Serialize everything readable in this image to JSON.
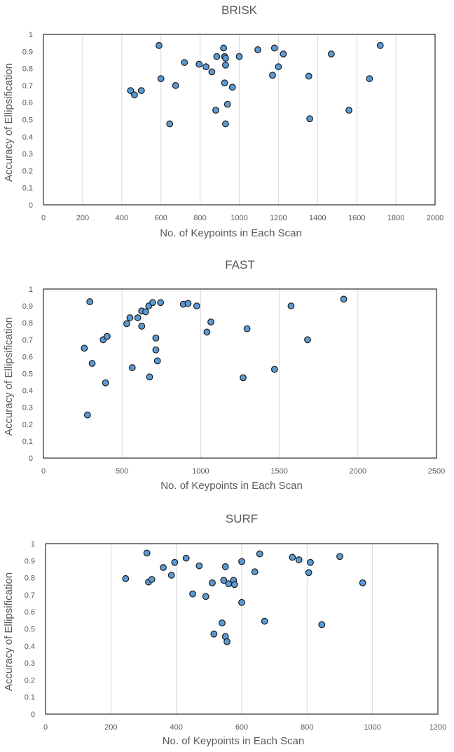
{
  "chart_data": [
    {
      "type": "scatter",
      "title": "BRISK",
      "xlabel": "No. of Keypoints in Each Scan",
      "ylabel": "Accuracy of Ellipsification",
      "xlim": [
        0,
        2000
      ],
      "ylim": [
        0,
        1
      ],
      "xticks": [
        0,
        200,
        400,
        600,
        800,
        1000,
        1200,
        1400,
        1600,
        1800,
        2000
      ],
      "yticks": [
        0,
        0.1,
        0.2,
        0.3,
        0.4,
        0.5,
        0.6,
        0.7,
        0.8,
        0.9,
        1
      ],
      "grid": "vertical",
      "marker_color": "#5b9bd5",
      "points": [
        [
          445,
          0.67
        ],
        [
          465,
          0.645
        ],
        [
          500,
          0.67
        ],
        [
          590,
          0.935
        ],
        [
          600,
          0.74
        ],
        [
          645,
          0.475
        ],
        [
          675,
          0.7
        ],
        [
          720,
          0.835
        ],
        [
          795,
          0.825
        ],
        [
          830,
          0.81
        ],
        [
          860,
          0.78
        ],
        [
          885,
          0.87
        ],
        [
          880,
          0.555
        ],
        [
          920,
          0.92
        ],
        [
          925,
          0.87
        ],
        [
          930,
          0.86
        ],
        [
          930,
          0.82
        ],
        [
          925,
          0.715
        ],
        [
          940,
          0.59
        ],
        [
          930,
          0.475
        ],
        [
          965,
          0.69
        ],
        [
          1000,
          0.87
        ],
        [
          1095,
          0.91
        ],
        [
          1170,
          0.76
        ],
        [
          1180,
          0.92
        ],
        [
          1200,
          0.81
        ],
        [
          1225,
          0.885
        ],
        [
          1355,
          0.755
        ],
        [
          1360,
          0.505
        ],
        [
          1470,
          0.885
        ],
        [
          1560,
          0.555
        ],
        [
          1665,
          0.74
        ],
        [
          1720,
          0.935
        ]
      ]
    },
    {
      "type": "scatter",
      "title": "FAST",
      "xlabel": "No. of Keypoints in Each Scan",
      "ylabel": "Accuracy of Ellipsification",
      "xlim": [
        0,
        2500
      ],
      "ylim": [
        0,
        1
      ],
      "xticks": [
        0,
        500,
        1000,
        1500,
        2000,
        2500
      ],
      "yticks": [
        0,
        0.1,
        0.2,
        0.3,
        0.4,
        0.5,
        0.6,
        0.7,
        0.8,
        0.9,
        1
      ],
      "grid": "vertical",
      "marker_color": "#5b9bd5",
      "points": [
        [
          260,
          0.65
        ],
        [
          280,
          0.255
        ],
        [
          295,
          0.925
        ],
        [
          310,
          0.56
        ],
        [
          380,
          0.7
        ],
        [
          395,
          0.445
        ],
        [
          405,
          0.72
        ],
        [
          530,
          0.795
        ],
        [
          550,
          0.83
        ],
        [
          565,
          0.535
        ],
        [
          600,
          0.83
        ],
        [
          625,
          0.78
        ],
        [
          625,
          0.87
        ],
        [
          650,
          0.865
        ],
        [
          670,
          0.9
        ],
        [
          675,
          0.48
        ],
        [
          695,
          0.92
        ],
        [
          715,
          0.71
        ],
        [
          715,
          0.64
        ],
        [
          725,
          0.575
        ],
        [
          745,
          0.92
        ],
        [
          890,
          0.91
        ],
        [
          920,
          0.915
        ],
        [
          975,
          0.9
        ],
        [
          1040,
          0.745
        ],
        [
          1065,
          0.805
        ],
        [
          1270,
          0.475
        ],
        [
          1295,
          0.765
        ],
        [
          1470,
          0.525
        ],
        [
          1575,
          0.9
        ],
        [
          1680,
          0.7
        ],
        [
          1910,
          0.94
        ]
      ]
    },
    {
      "type": "scatter",
      "title": "SURF",
      "xlabel": "No. of Keypoints in Each Scan",
      "ylabel": "Accuracy of Ellipsification",
      "xlim": [
        0,
        1200
      ],
      "ylim": [
        0,
        1
      ],
      "xticks": [
        0,
        200,
        400,
        600,
        800,
        1000,
        1200
      ],
      "yticks": [
        0,
        0.1,
        0.2,
        0.3,
        0.4,
        0.5,
        0.6,
        0.7,
        0.8,
        0.9,
        1
      ],
      "grid": "vertical",
      "marker_color": "#5b9bd5",
      "points": [
        [
          245,
          0.795
        ],
        [
          310,
          0.945
        ],
        [
          315,
          0.775
        ],
        [
          325,
          0.79
        ],
        [
          360,
          0.86
        ],
        [
          385,
          0.815
        ],
        [
          395,
          0.89
        ],
        [
          430,
          0.915
        ],
        [
          450,
          0.705
        ],
        [
          470,
          0.87
        ],
        [
          490,
          0.69
        ],
        [
          510,
          0.77
        ],
        [
          515,
          0.47
        ],
        [
          540,
          0.535
        ],
        [
          545,
          0.785
        ],
        [
          550,
          0.865
        ],
        [
          550,
          0.455
        ],
        [
          555,
          0.425
        ],
        [
          560,
          0.765
        ],
        [
          575,
          0.785
        ],
        [
          578,
          0.76
        ],
        [
          600,
          0.895
        ],
        [
          600,
          0.655
        ],
        [
          640,
          0.835
        ],
        [
          655,
          0.94
        ],
        [
          670,
          0.545
        ],
        [
          755,
          0.92
        ],
        [
          775,
          0.905
        ],
        [
          805,
          0.83
        ],
        [
          810,
          0.89
        ],
        [
          845,
          0.525
        ],
        [
          900,
          0.925
        ],
        [
          970,
          0.77
        ]
      ]
    }
  ]
}
